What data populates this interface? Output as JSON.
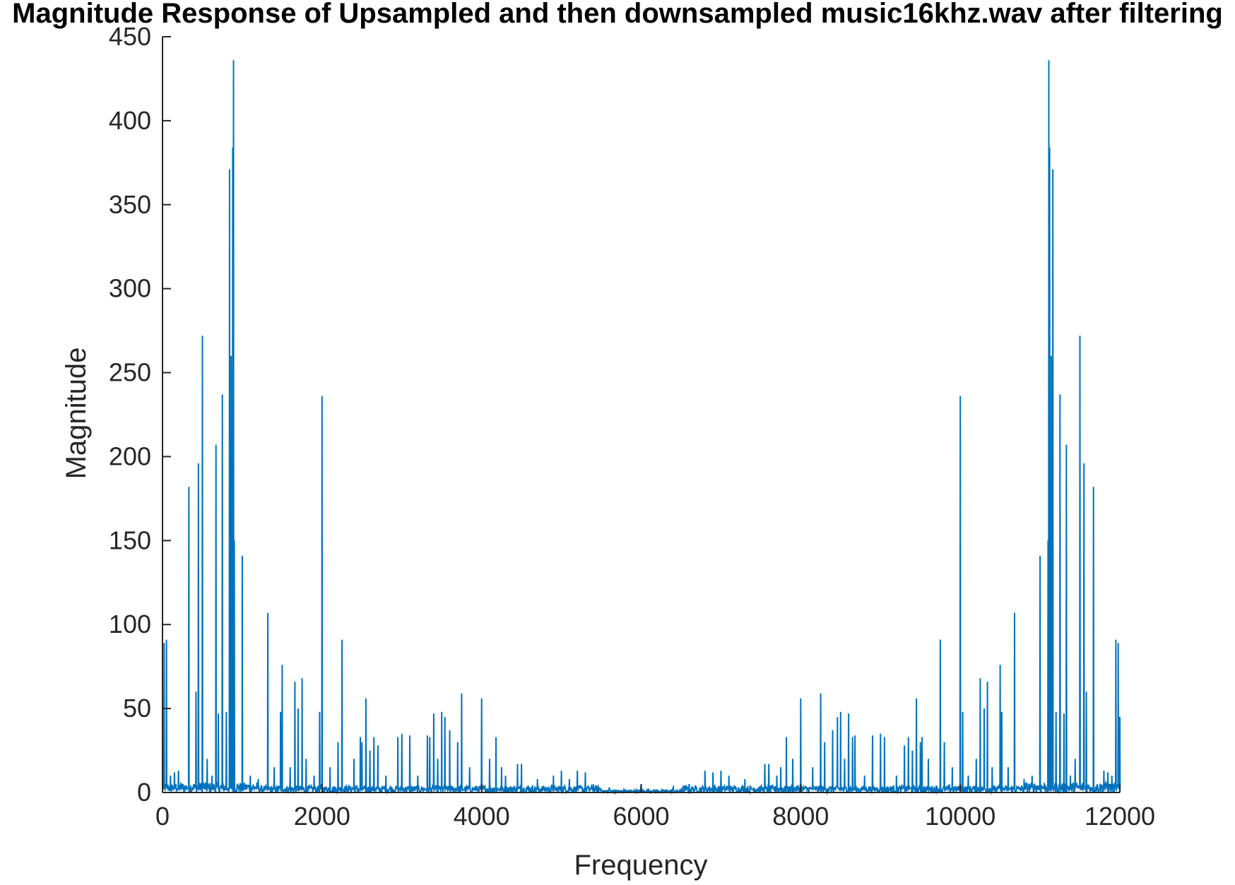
{
  "chart_data": {
    "type": "line",
    "title": "Magnitude Response of Upsampled and then downsampled music16khz.wav after filtering",
    "xlabel": "Frequency",
    "ylabel": "Magnitude",
    "xlim": [
      0,
      12000
    ],
    "ylim": [
      0,
      450
    ],
    "xticks": [
      0,
      2000,
      4000,
      6000,
      8000,
      10000,
      12000
    ],
    "yticks": [
      0,
      50,
      100,
      150,
      200,
      250,
      300,
      350,
      400,
      450
    ],
    "grid": false,
    "color": "#0072BD",
    "series": [
      {
        "peaks": [
          [
            20,
            89
          ],
          [
            50,
            91
          ],
          [
            100,
            10
          ],
          [
            150,
            12
          ],
          [
            200,
            13
          ],
          [
            330,
            182
          ],
          [
            420,
            60
          ],
          [
            450,
            196
          ],
          [
            500,
            272
          ],
          [
            560,
            20
          ],
          [
            620,
            10
          ],
          [
            670,
            207
          ],
          [
            700,
            47
          ],
          [
            750,
            237
          ],
          [
            800,
            48
          ],
          [
            840,
            371
          ],
          [
            860,
            260
          ],
          [
            880,
            384
          ],
          [
            890,
            436
          ],
          [
            900,
            150
          ],
          [
            1000,
            141
          ],
          [
            1100,
            10
          ],
          [
            1200,
            8
          ],
          [
            1320,
            107
          ],
          [
            1400,
            15
          ],
          [
            1480,
            48
          ],
          [
            1500,
            76
          ],
          [
            1600,
            15
          ],
          [
            1660,
            66
          ],
          [
            1700,
            50
          ],
          [
            1750,
            68
          ],
          [
            1800,
            20
          ],
          [
            1900,
            10
          ],
          [
            1970,
            48
          ],
          [
            2000,
            236
          ],
          [
            2100,
            15
          ],
          [
            2200,
            30
          ],
          [
            2250,
            91
          ],
          [
            2400,
            20
          ],
          [
            2480,
            33
          ],
          [
            2500,
            30
          ],
          [
            2550,
            56
          ],
          [
            2600,
            25
          ],
          [
            2650,
            33
          ],
          [
            2700,
            28
          ],
          [
            2800,
            10
          ],
          [
            2950,
            33
          ],
          [
            3000,
            35
          ],
          [
            3100,
            34
          ],
          [
            3200,
            10
          ],
          [
            3320,
            34
          ],
          [
            3350,
            33
          ],
          [
            3400,
            47
          ],
          [
            3450,
            20
          ],
          [
            3500,
            48
          ],
          [
            3540,
            45
          ],
          [
            3600,
            37
          ],
          [
            3700,
            30
          ],
          [
            3750,
            59
          ],
          [
            3850,
            15
          ],
          [
            4000,
            56
          ],
          [
            4100,
            20
          ],
          [
            4180,
            33
          ],
          [
            4250,
            15
          ],
          [
            4300,
            10
          ],
          [
            4450,
            17
          ],
          [
            4500,
            17
          ],
          [
            4700,
            8
          ],
          [
            4900,
            10
          ],
          [
            5000,
            13
          ],
          [
            5100,
            8
          ],
          [
            5200,
            13
          ],
          [
            5300,
            12
          ],
          [
            5400,
            5
          ],
          [
            5600,
            3
          ],
          [
            6000,
            5
          ],
          [
            6400,
            3
          ],
          [
            6600,
            5
          ],
          [
            6800,
            13
          ],
          [
            6900,
            12
          ],
          [
            7000,
            13
          ],
          [
            7100,
            10
          ],
          [
            7300,
            8
          ],
          [
            7550,
            17
          ],
          [
            7600,
            17
          ],
          [
            7700,
            10
          ],
          [
            7750,
            15
          ],
          [
            7820,
            33
          ],
          [
            7900,
            20
          ],
          [
            8000,
            56
          ],
          [
            8150,
            15
          ],
          [
            8250,
            59
          ],
          [
            8300,
            30
          ],
          [
            8400,
            37
          ],
          [
            8460,
            45
          ],
          [
            8500,
            48
          ],
          [
            8550,
            20
          ],
          [
            8600,
            47
          ],
          [
            8650,
            33
          ],
          [
            8680,
            34
          ],
          [
            8800,
            10
          ],
          [
            8900,
            34
          ],
          [
            9000,
            35
          ],
          [
            9050,
            33
          ],
          [
            9200,
            10
          ],
          [
            9300,
            28
          ],
          [
            9350,
            33
          ],
          [
            9400,
            25
          ],
          [
            9450,
            56
          ],
          [
            9500,
            30
          ],
          [
            9520,
            33
          ],
          [
            9600,
            20
          ],
          [
            9750,
            91
          ],
          [
            9800,
            30
          ],
          [
            9900,
            15
          ],
          [
            10000,
            236
          ],
          [
            10030,
            48
          ],
          [
            10100,
            10
          ],
          [
            10200,
            20
          ],
          [
            10250,
            68
          ],
          [
            10300,
            50
          ],
          [
            10340,
            66
          ],
          [
            10400,
            15
          ],
          [
            10500,
            76
          ],
          [
            10520,
            48
          ],
          [
            10600,
            15
          ],
          [
            10680,
            107
          ],
          [
            10800,
            8
          ],
          [
            10900,
            10
          ],
          [
            11000,
            141
          ],
          [
            11100,
            150
          ],
          [
            11110,
            436
          ],
          [
            11120,
            384
          ],
          [
            11140,
            260
          ],
          [
            11160,
            371
          ],
          [
            11200,
            48
          ],
          [
            11250,
            237
          ],
          [
            11300,
            47
          ],
          [
            11330,
            207
          ],
          [
            11380,
            10
          ],
          [
            11440,
            20
          ],
          [
            11500,
            272
          ],
          [
            11550,
            196
          ],
          [
            11580,
            60
          ],
          [
            11670,
            182
          ],
          [
            11800,
            13
          ],
          [
            11850,
            12
          ],
          [
            11900,
            10
          ],
          [
            11950,
            91
          ],
          [
            11980,
            89
          ],
          [
            12000,
            45
          ]
        ]
      }
    ]
  }
}
